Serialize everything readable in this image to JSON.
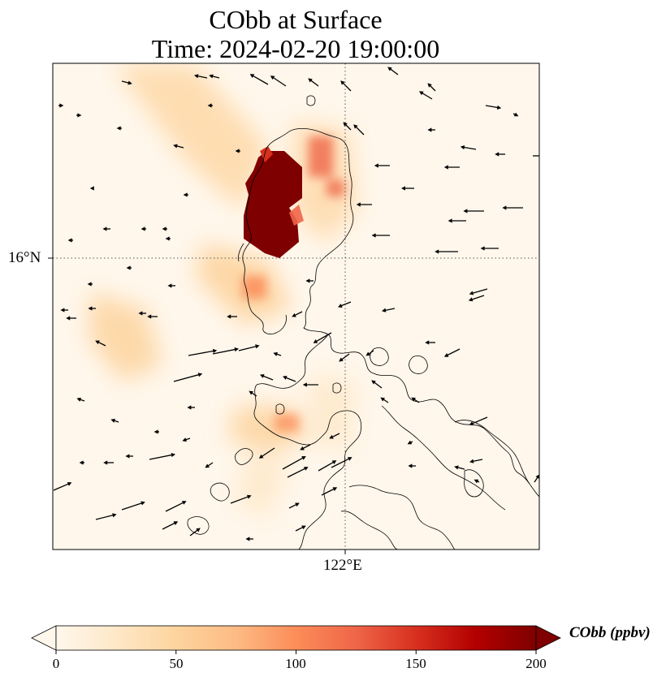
{
  "title": {
    "line1": "CObb at Surface",
    "line2": "Time: 2024-02-20 19:00:00"
  },
  "map": {
    "lat_label": "16°N",
    "lon_label": "122°E",
    "gridline_style": "dotted"
  },
  "colorbar": {
    "label": "CObb (ppbv)",
    "colormap": "OrRd",
    "min": 0,
    "max": 200,
    "extend": "both",
    "ticks": [
      "0",
      "50",
      "100",
      "150",
      "200"
    ],
    "stops": [
      "#fff7ec",
      "#fee8c8",
      "#fdd49e",
      "#fdbb84",
      "#fc8d59",
      "#ef6548",
      "#d7301f",
      "#b30000",
      "#7f0000"
    ]
  },
  "colors": {
    "background": "#fff7ec",
    "coastline": "#000000",
    "arrows": "#000000",
    "hotspot": "#7f0000"
  }
}
